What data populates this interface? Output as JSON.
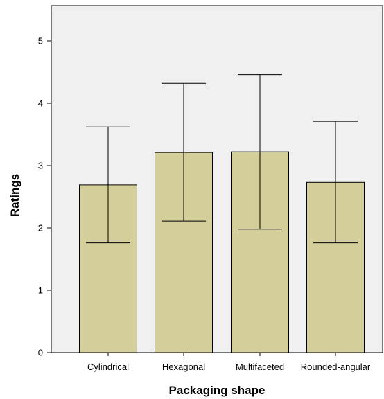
{
  "chart_data": {
    "type": "bar",
    "title": "",
    "xlabel": "Packaging shape",
    "ylabel": "Ratings",
    "categories": [
      "Cylindrical",
      "Hexagonal",
      "Multifaceted",
      "Rounded-angular"
    ],
    "values": [
      2.69,
      3.21,
      3.22,
      2.73
    ],
    "error_bars": {
      "upper": [
        3.62,
        4.32,
        4.46,
        3.71
      ],
      "lower": [
        1.76,
        2.11,
        1.98,
        1.76
      ]
    },
    "ylim": [
      0,
      5.5
    ],
    "yticks": [
      "0",
      "1",
      "2",
      "3",
      "4",
      "5"
    ],
    "grid": false,
    "legend": "none",
    "colors": {
      "bar_fill": "#d4ce9a",
      "plot_background": "#f0f0f0",
      "stroke": "#000000"
    }
  }
}
